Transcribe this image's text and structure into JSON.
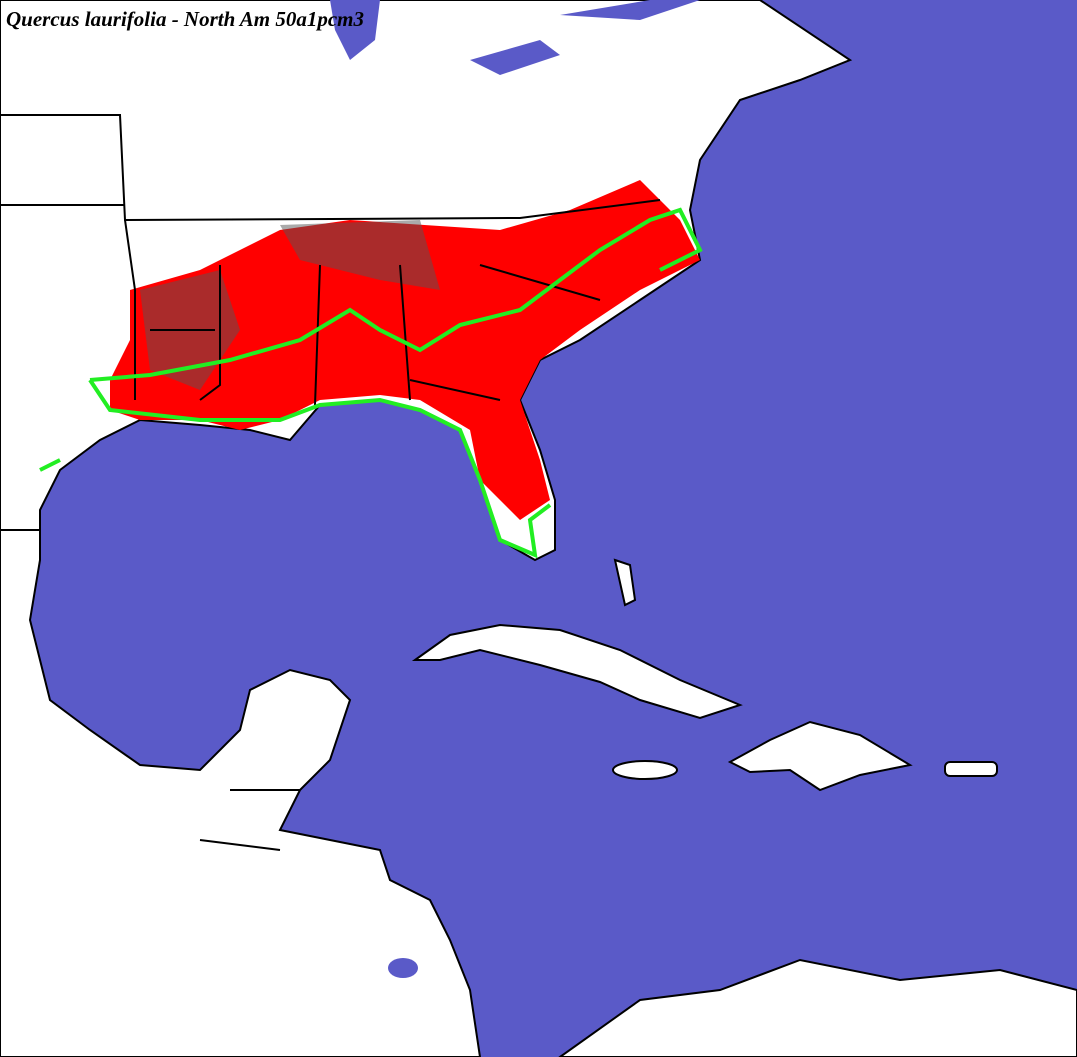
{
  "title": "Quercus laurifolia - North Am 50a1pcm3"
}
